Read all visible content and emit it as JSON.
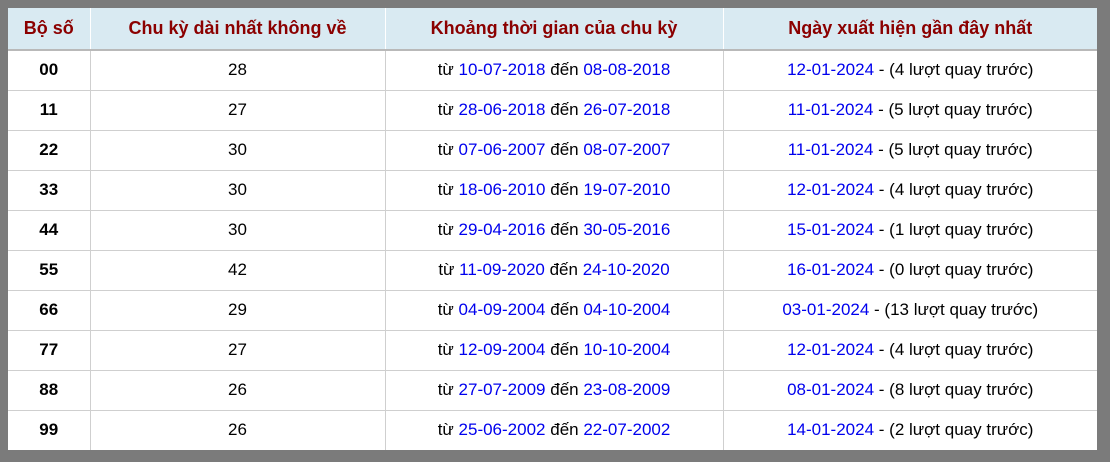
{
  "table": {
    "headers": [
      "Bộ số",
      "Chu kỳ dài nhất không về",
      "Khoảng thời gian của chu kỳ",
      "Ngày xuất hiện gần đây nhất"
    ],
    "rows": [
      {
        "pair": "00",
        "cycle": "28",
        "from_label": "từ",
        "from_date": "10-07-2018",
        "to_label": "đến",
        "to_date": "08-08-2018",
        "recent_date": "12-01-2024",
        "recent_note": "- (4 lượt quay trước)"
      },
      {
        "pair": "11",
        "cycle": "27",
        "from_label": "từ",
        "from_date": "28-06-2018",
        "to_label": "đến",
        "to_date": "26-07-2018",
        "recent_date": "11-01-2024",
        "recent_note": "- (5 lượt quay trước)"
      },
      {
        "pair": "22",
        "cycle": "30",
        "from_label": "từ",
        "from_date": "07-06-2007",
        "to_label": "đến",
        "to_date": "08-07-2007",
        "recent_date": "11-01-2024",
        "recent_note": "- (5 lượt quay trước)"
      },
      {
        "pair": "33",
        "cycle": "30",
        "from_label": "từ",
        "from_date": "18-06-2010",
        "to_label": "đến",
        "to_date": "19-07-2010",
        "recent_date": "12-01-2024",
        "recent_note": "- (4 lượt quay trước)"
      },
      {
        "pair": "44",
        "cycle": "30",
        "from_label": "từ",
        "from_date": "29-04-2016",
        "to_label": "đến",
        "to_date": "30-05-2016",
        "recent_date": "15-01-2024",
        "recent_note": "- (1 lượt quay trước)"
      },
      {
        "pair": "55",
        "cycle": "42",
        "from_label": "từ",
        "from_date": "11-09-2020",
        "to_label": "đến",
        "to_date": "24-10-2020",
        "recent_date": "16-01-2024",
        "recent_note": "- (0 lượt quay trước)"
      },
      {
        "pair": "66",
        "cycle": "29",
        "from_label": "từ",
        "from_date": "04-09-2004",
        "to_label": "đến",
        "to_date": "04-10-2004",
        "recent_date": "03-01-2024",
        "recent_note": "- (13 lượt quay trước)"
      },
      {
        "pair": "77",
        "cycle": "27",
        "from_label": "từ",
        "from_date": "12-09-2004",
        "to_label": "đến",
        "to_date": "10-10-2004",
        "recent_date": "12-01-2024",
        "recent_note": "- (4 lượt quay trước)"
      },
      {
        "pair": "88",
        "cycle": "26",
        "from_label": "từ",
        "from_date": "27-07-2009",
        "to_label": "đến",
        "to_date": "23-08-2009",
        "recent_date": "08-01-2024",
        "recent_note": "- (8 lượt quay trước)"
      },
      {
        "pair": "99",
        "cycle": "26",
        "from_label": "từ",
        "from_date": "25-06-2002",
        "to_label": "đến",
        "to_date": "22-07-2002",
        "recent_date": "14-01-2024",
        "recent_note": "- (2 lượt quay trước)"
      }
    ]
  },
  "colors": {
    "frame": "#7b7b7b",
    "header_bg": "#d9eaf2",
    "header_text": "#8b0000",
    "link": "#0000ee",
    "body_text": "#000000",
    "grid_line": "#cfcfcf"
  }
}
